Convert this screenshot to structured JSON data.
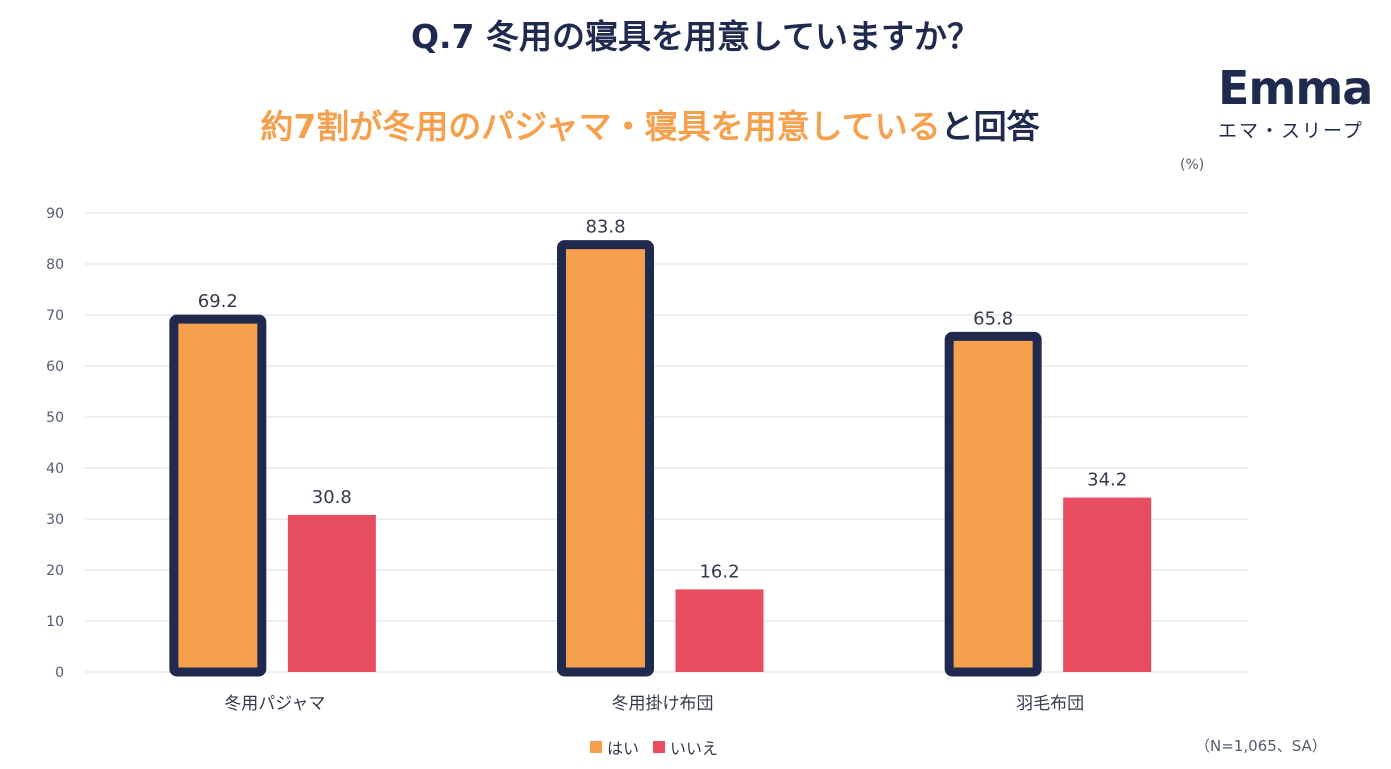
{
  "header": {
    "title": "Q.7 冬用の寝具を用意していますか？",
    "subtitle_highlight": "約7割が冬用のパジャマ・寝具を用意している",
    "subtitle_rest": "と回答"
  },
  "logo": {
    "word": "Emma",
    "kana": "エマ・スリープ"
  },
  "unit_label": "(%)",
  "note": "（N=1,065、SA）",
  "colors": {
    "yes": "#f6a04d",
    "no": "#e84c5f",
    "outline": "#1f2a4e",
    "grid": "#d9dde5"
  },
  "chart_data": {
    "type": "bar",
    "title": "Q.7 冬用の寝具を用意していますか？",
    "categories": [
      "冬用パジャマ",
      "冬用掛け布団",
      "羽毛布団"
    ],
    "series": [
      {
        "name": "はい",
        "values": [
          69.2,
          83.8,
          65.8
        ]
      },
      {
        "name": "いいえ",
        "values": [
          30.8,
          16.2,
          34.2
        ]
      }
    ],
    "ylim": [
      0,
      90
    ],
    "yticks": [
      0,
      10,
      20,
      30,
      40,
      50,
      60,
      70,
      80,
      90
    ],
    "ylabel": "(%)",
    "xlabel": "",
    "grid": true,
    "legend": "bottom-center",
    "highlighted_series": "はい"
  }
}
